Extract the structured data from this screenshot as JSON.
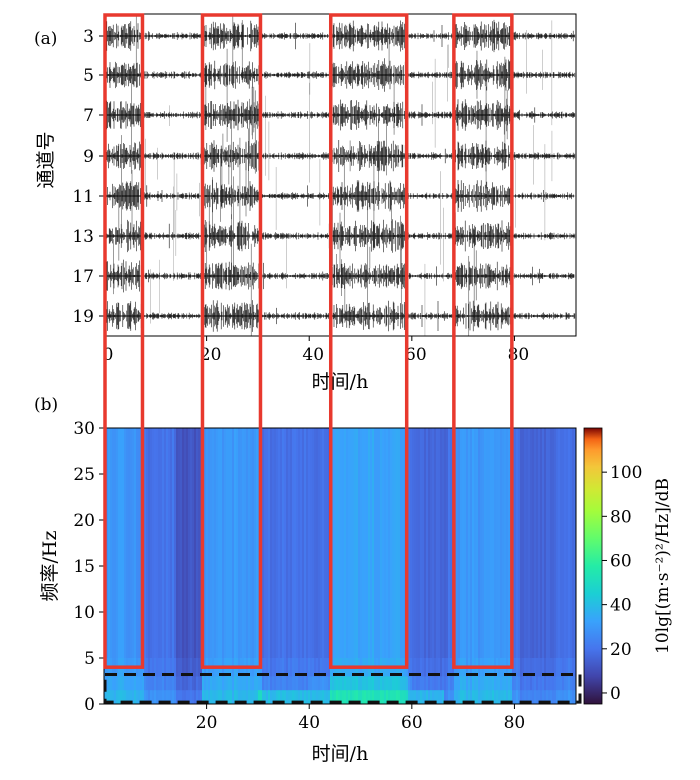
{
  "panel_a": {
    "label": "(a)",
    "chart_data": {
      "type": "seismic-waveforms",
      "xlabel": "时间/h",
      "ylabel": "通道号",
      "x_ticks": [
        0,
        20,
        40,
        60,
        80
      ],
      "channels": [
        "3",
        "5",
        "7",
        "9",
        "11",
        "13",
        "17",
        "19"
      ],
      "xlim": [
        0,
        92
      ]
    }
  },
  "panel_b": {
    "label": "(b)",
    "chart_data": {
      "type": "heatmap",
      "xlabel": "时间/h",
      "ylabel": "频率/Hz",
      "x_ticks": [
        20,
        40,
        60,
        80
      ],
      "y_ticks": [
        0,
        5,
        10,
        15,
        20,
        25,
        30
      ],
      "xlim": [
        0,
        92
      ],
      "ylim": [
        0,
        30
      ],
      "colorbar": {
        "label": "10lg[(m·s⁻²)²/Hz]/dB",
        "ticks": [
          0,
          20,
          40,
          60,
          80,
          100
        ],
        "range": [
          -5,
          120
        ]
      },
      "low_frequency_band_hz": [
        0.2,
        3.2
      ]
    }
  },
  "highlight_windows": {
    "color": "#e8392e",
    "hours": [
      [
        0,
        7.5
      ],
      [
        19,
        30.5
      ],
      [
        44,
        59
      ],
      [
        68,
        79.5
      ]
    ]
  }
}
